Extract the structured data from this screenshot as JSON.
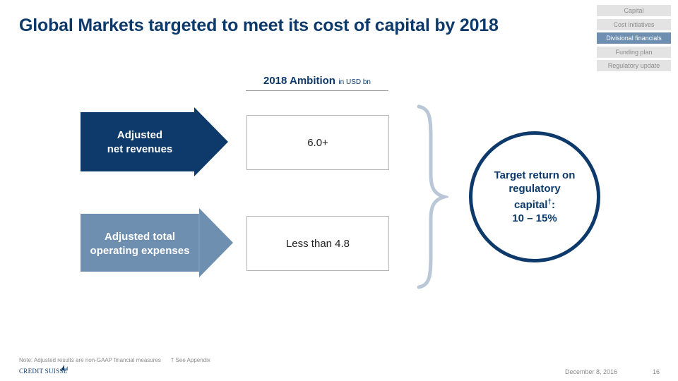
{
  "title": "Global Markets targeted to meet its cost of capital by 2018",
  "nav": {
    "items": [
      "Capital",
      "Cost initiatives",
      "Divisional financials",
      "Funding plan",
      "Regulatory update"
    ],
    "active_index": 2
  },
  "ambition": {
    "title": "2018 Ambition",
    "unit": "in USD bn"
  },
  "rows": [
    {
      "label_line1": "Adjusted",
      "label_line2": "net revenues",
      "value": "6.0+",
      "color": "#0d3a6b"
    },
    {
      "label_line1": "Adjusted total",
      "label_line2": "operating expenses",
      "value": "Less than 4.8",
      "color": "#6f8fb0"
    }
  ],
  "target": {
    "line1": "Target return on",
    "line2": "regulatory",
    "line3": "capital",
    "superscript": "†",
    "colon": ":",
    "line4": "10 – 15%"
  },
  "footer": {
    "note": "Note: Adjusted results are non-GAAP financial measures",
    "appendix": "† See Appendix",
    "logo_text": "CREDIT SUISSE",
    "date": "December 8, 2016",
    "page": "16"
  },
  "colors": {
    "brand_dark": "#0d3a6b",
    "brand_light": "#6f8fb0",
    "brace": "#b9c7d6"
  }
}
